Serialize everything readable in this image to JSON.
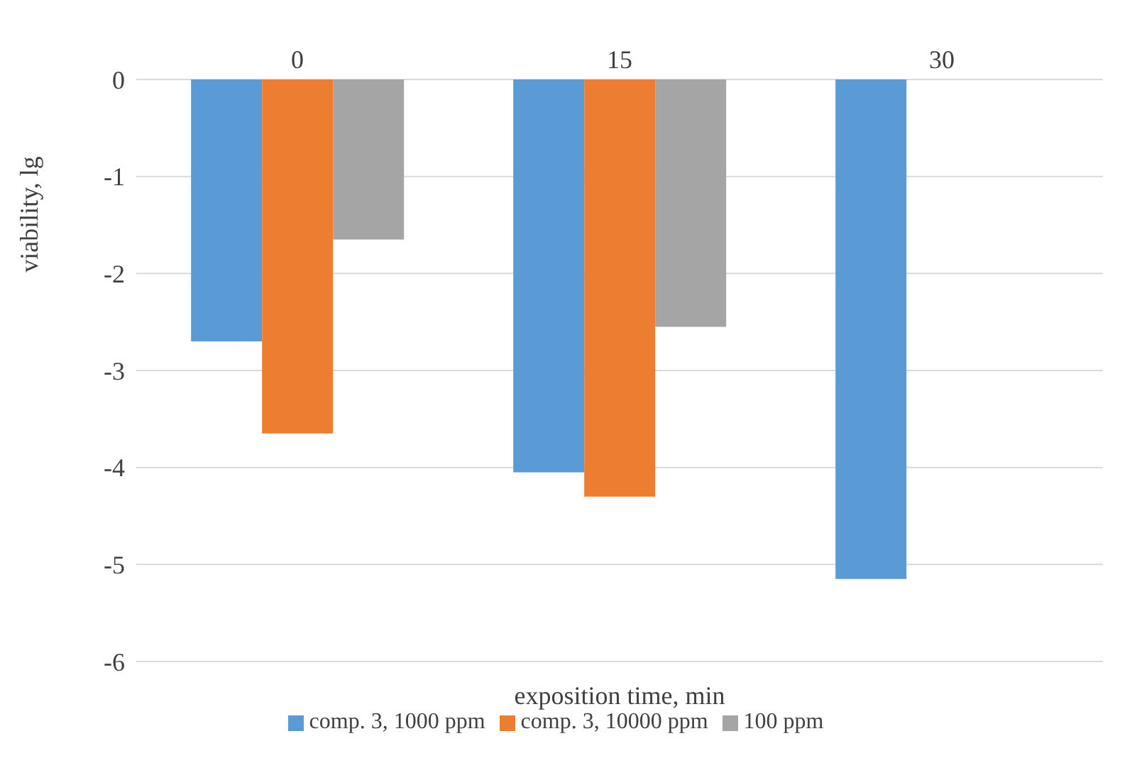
{
  "chart_data": {
    "type": "bar",
    "xlabel": "exposition time, min",
    "ylabel": "viability, lg",
    "categories": [
      "0",
      "15",
      "30"
    ],
    "series": [
      {
        "name": "comp. 3, 1000 ppm",
        "color": "#5b9bd5",
        "values": [
          -2.7,
          -4.05,
          -5.15
        ]
      },
      {
        "name": "comp. 3, 10000 ppm",
        "color": "#ed7d31",
        "values": [
          -3.65,
          -4.3,
          null
        ]
      },
      {
        "name": "100 ppm",
        "color": "#a5a5a5",
        "values": [
          -1.65,
          -2.55,
          null
        ]
      }
    ],
    "ylim": [
      -6,
      0
    ],
    "yticks": [
      -6,
      -5,
      -4,
      -3,
      -2,
      -1,
      0
    ],
    "grid": "y",
    "legend": "bottom"
  }
}
